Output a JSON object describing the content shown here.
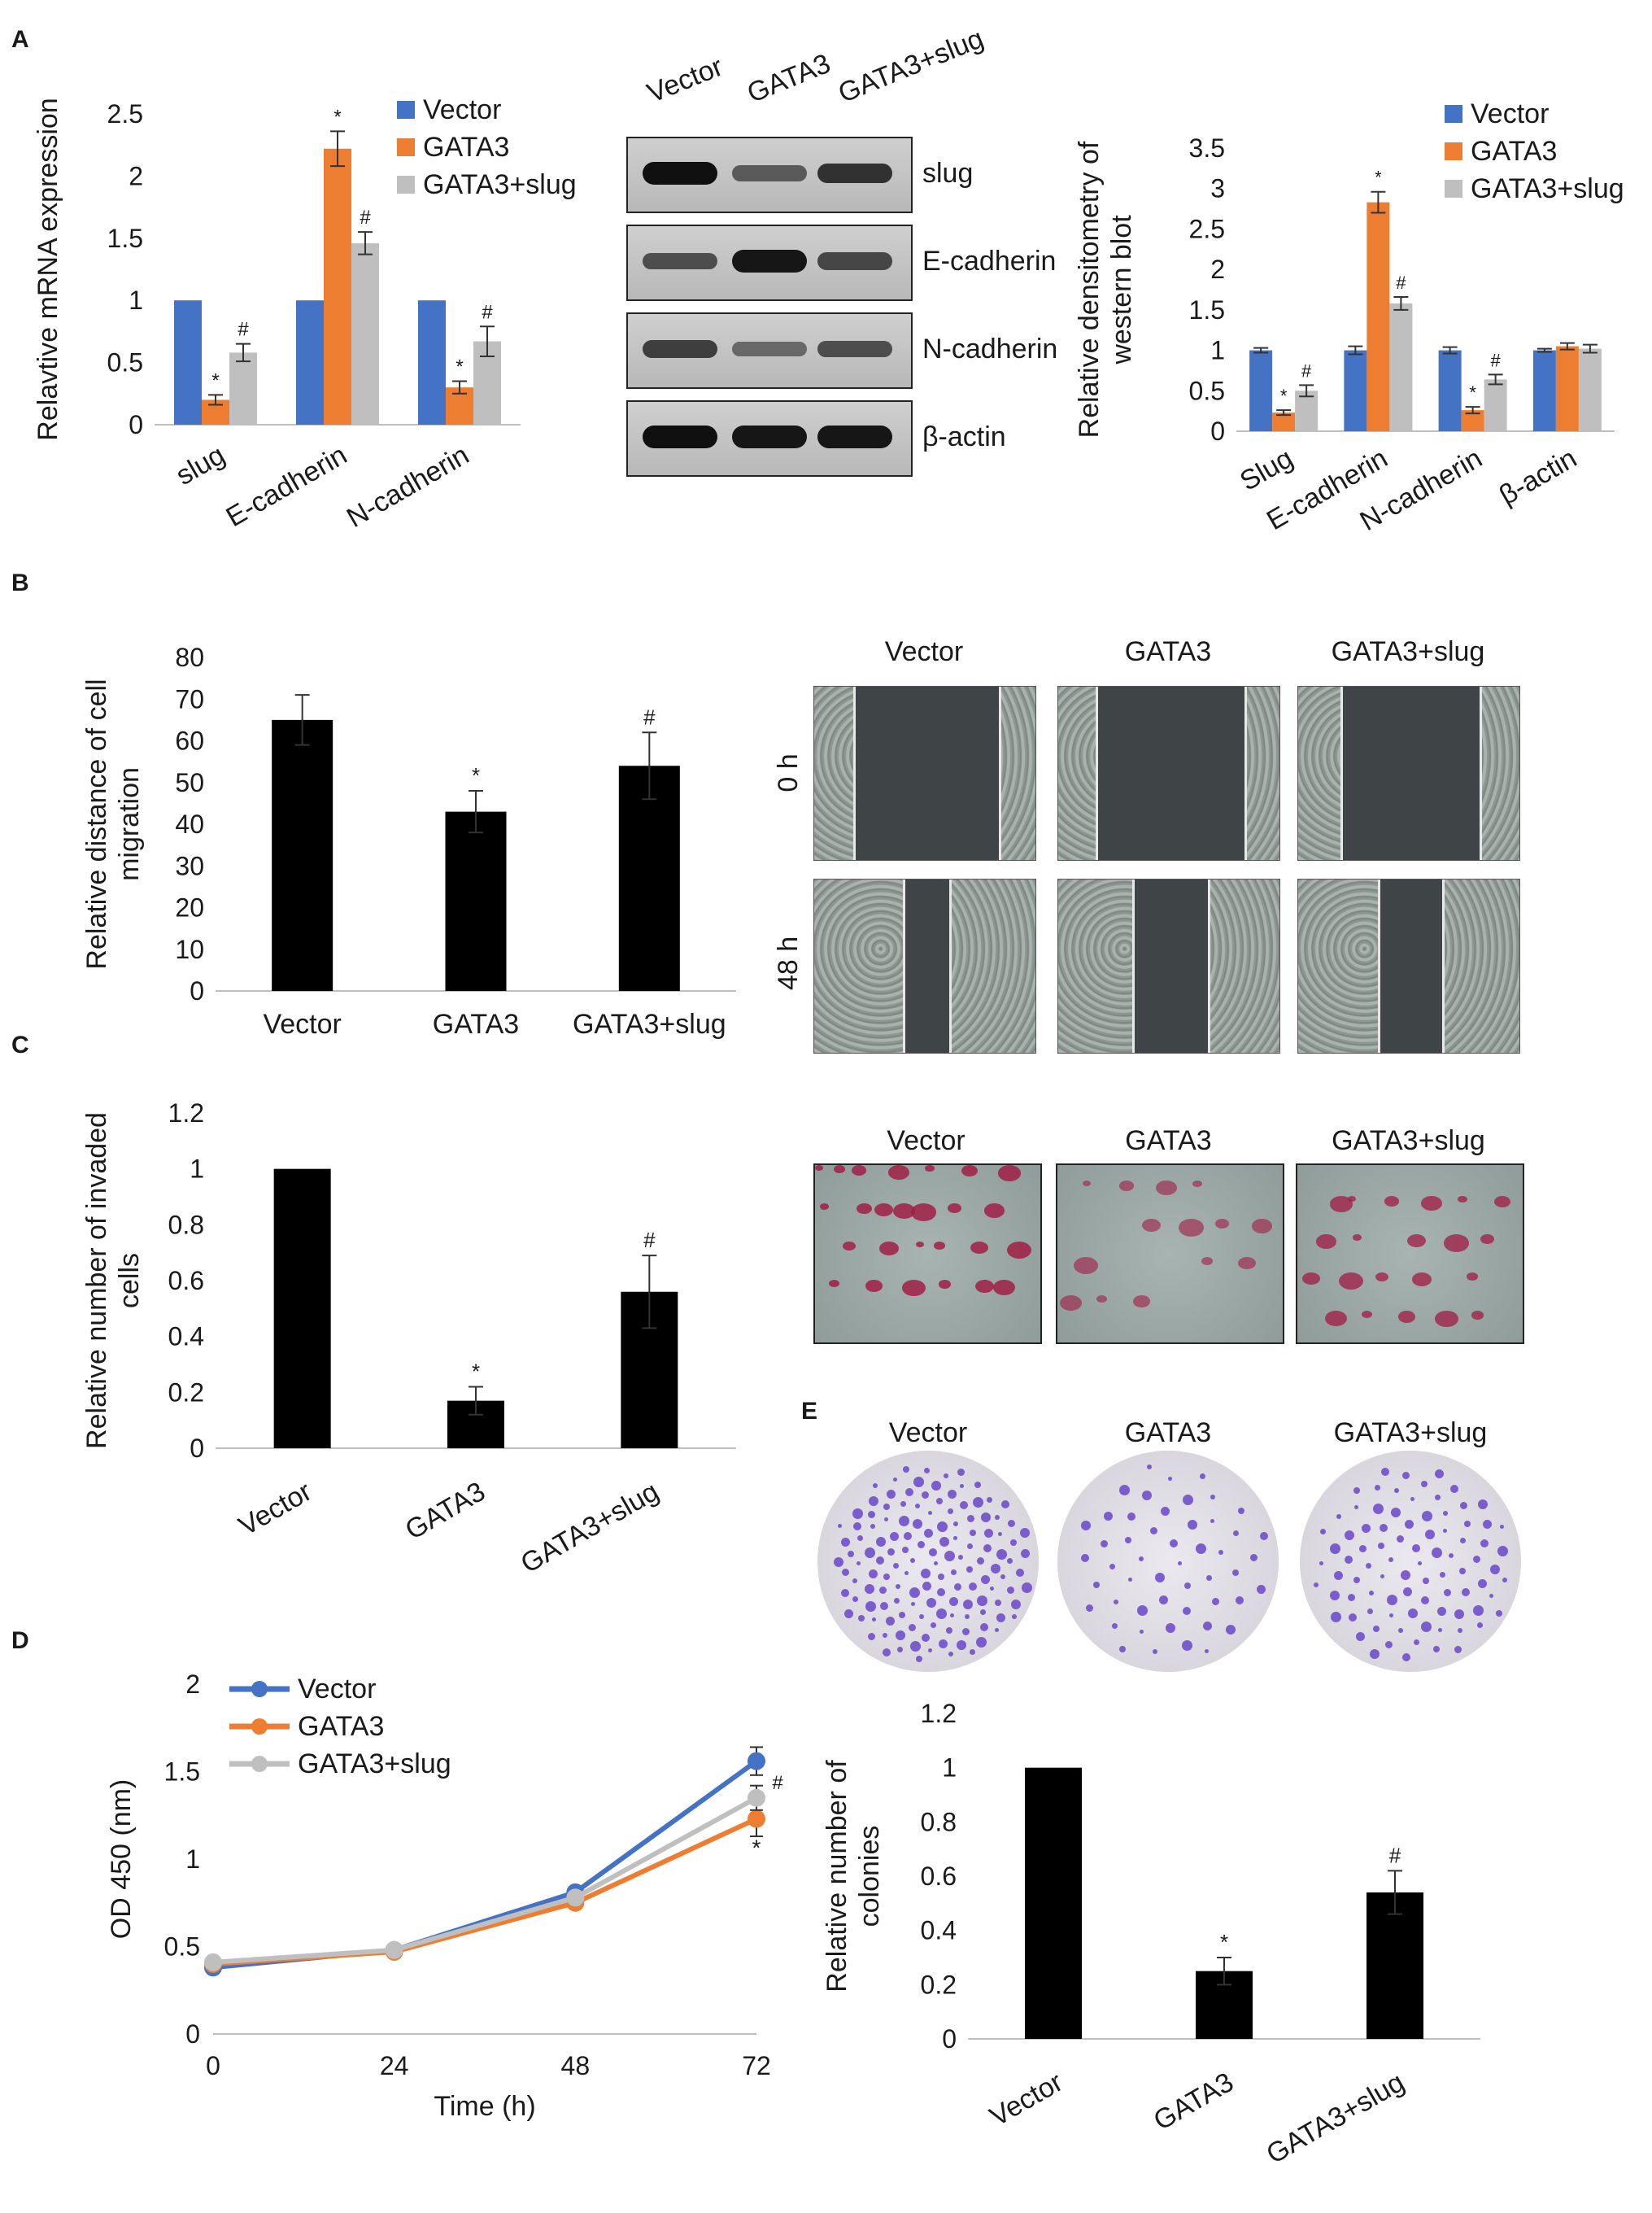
{
  "panel_labels": {
    "A": "A",
    "B": "B",
    "C": "C",
    "D": "D",
    "E": "E"
  },
  "colors": {
    "vector": "#4472c4",
    "gata3": "#ed7d31",
    "gata3_slug": "#bfbfbf",
    "bar": "#000000"
  },
  "panelA": {
    "blot": {
      "columns": [
        "Vector",
        "GATA3",
        "GATA3+slug"
      ],
      "rows": [
        {
          "label": "slug",
          "intensity": [
            1.0,
            0.45,
            0.75
          ]
        },
        {
          "label": "E-cadherin",
          "intensity": [
            0.55,
            0.95,
            0.6
          ]
        },
        {
          "label": "N-cadherin",
          "intensity": [
            0.65,
            0.35,
            0.55
          ]
        },
        {
          "label": "β-actin",
          "intensity": [
            1.0,
            0.95,
            0.95
          ]
        }
      ]
    }
  },
  "panelB": {
    "timepoints": [
      "0 h",
      "48 h"
    ],
    "columns": [
      "Vector",
      "GATA3",
      "GATA3+slug"
    ],
    "gap_fraction": [
      [
        0.65,
        0.66,
        0.62
      ],
      [
        0.2,
        0.33,
        0.28
      ]
    ]
  },
  "panelC": {
    "columns": [
      "Vector",
      "GATA3",
      "GATA3+slug"
    ],
    "stain_density": [
      0.9,
      0.35,
      0.7
    ]
  },
  "panelE": {
    "columns": [
      "Vector",
      "GATA3",
      "GATA3+slug"
    ],
    "colony_density": [
      1.0,
      0.25,
      0.55
    ]
  },
  "chart_data": [
    {
      "id": "A-left",
      "type": "bar",
      "categories": [
        "slug",
        "E-cadherin",
        "N-cadherin"
      ],
      "ylabel": "Relavtive mRNA expression",
      "xlabel": "",
      "title": "",
      "ylim": [
        0,
        2.5
      ],
      "yticks": [
        "0",
        "0.5",
        "1",
        "1.5",
        "2",
        "2.5"
      ],
      "grid": false,
      "legend": "top-right",
      "series": [
        {
          "name": "Vector",
          "color": "#4472c4",
          "values": [
            1.0,
            1.0,
            1.0
          ],
          "errors": [
            0,
            0,
            0
          ],
          "marks": [
            "",
            "",
            ""
          ]
        },
        {
          "name": "GATA3",
          "color": "#ed7d31",
          "values": [
            0.2,
            2.22,
            0.3
          ],
          "errors": [
            0.04,
            0.14,
            0.05
          ],
          "marks": [
            "*",
            "*",
            "*"
          ]
        },
        {
          "name": "GATA3+slug",
          "color": "#bfbfbf",
          "values": [
            0.58,
            1.46,
            0.67
          ],
          "errors": [
            0.07,
            0.09,
            0.12
          ],
          "marks": [
            "#",
            "#",
            "#"
          ]
        }
      ]
    },
    {
      "id": "A-right",
      "type": "bar",
      "categories": [
        "Slug",
        "E-cadherin",
        "N-cadherin",
        "β-actin"
      ],
      "ylabel": "Relative densitometry of western blot",
      "xlabel": "",
      "title": "",
      "ylim": [
        0,
        3.5
      ],
      "yticks": [
        "0",
        "0.5",
        "1",
        "1.5",
        "2",
        "2.5",
        "3",
        "3.5"
      ],
      "grid": false,
      "legend": "top-right",
      "series": [
        {
          "name": "Vector",
          "color": "#4472c4",
          "values": [
            1.0,
            1.0,
            1.0,
            1.0
          ],
          "errors": [
            0.03,
            0.05,
            0.04,
            0.02
          ],
          "marks": [
            "",
            "",
            "",
            ""
          ]
        },
        {
          "name": "GATA3",
          "color": "#ed7d31",
          "values": [
            0.23,
            2.83,
            0.26,
            1.05
          ],
          "errors": [
            0.03,
            0.13,
            0.04,
            0.04
          ],
          "marks": [
            "*",
            "*",
            "*",
            ""
          ]
        },
        {
          "name": "GATA3+slug",
          "color": "#bfbfbf",
          "values": [
            0.5,
            1.58,
            0.64,
            1.02
          ],
          "errors": [
            0.07,
            0.08,
            0.06,
            0.05
          ],
          "marks": [
            "#",
            "#",
            "#",
            ""
          ]
        }
      ]
    },
    {
      "id": "B",
      "type": "bar",
      "categories": [
        "Vector",
        "GATA3",
        "GATA3+slug"
      ],
      "ylabel": "Relative distance of cell migration",
      "xlabel": "",
      "title": "",
      "ylim": [
        0,
        80
      ],
      "yticks": [
        "0",
        "10",
        "20",
        "30",
        "40",
        "50",
        "60",
        "70",
        "80"
      ],
      "grid": false,
      "series": [
        {
          "color": "#000000",
          "values": [
            65,
            43,
            54
          ],
          "errors": [
            6,
            5,
            8
          ],
          "marks": [
            "",
            "*",
            "#"
          ]
        }
      ]
    },
    {
      "id": "C",
      "type": "bar",
      "categories": [
        "Vector",
        "GATA3",
        "GATA3+slug"
      ],
      "ylabel": "Relative number of invaded cells",
      "xlabel": "",
      "title": "",
      "ylim": [
        0,
        1.2
      ],
      "yticks": [
        "0",
        "0.2",
        "0.4",
        "0.6",
        "0.8",
        "1",
        "1.2"
      ],
      "grid": false,
      "series": [
        {
          "color": "#000000",
          "values": [
            1.0,
            0.17,
            0.56
          ],
          "errors": [
            0,
            0.05,
            0.13
          ],
          "marks": [
            "",
            "*",
            "#"
          ]
        }
      ]
    },
    {
      "id": "D",
      "type": "line",
      "x": [
        0,
        24,
        48,
        72
      ],
      "xticks": [
        "0",
        "24",
        "48",
        "72"
      ],
      "xlabel": "Time (h)",
      "ylabel": "OD 450 (nm)",
      "title": "",
      "xlim": [
        0,
        72
      ],
      "ylim": [
        0,
        2
      ],
      "yticks": [
        "0",
        "0.5",
        "1",
        "1.5",
        "2"
      ],
      "grid": false,
      "legend": "top-left",
      "series": [
        {
          "name": "Vector",
          "color": "#4472c4",
          "values": [
            0.38,
            0.48,
            0.81,
            1.56
          ],
          "errors": [
            0.02,
            0.03,
            0.03,
            0.08
          ]
        },
        {
          "name": "GATA3",
          "color": "#ed7d31",
          "values": [
            0.4,
            0.47,
            0.75,
            1.23
          ],
          "errors": [
            0.02,
            0.03,
            0.03,
            0.1
          ]
        },
        {
          "name": "GATA3+slug",
          "color": "#bfbfbf",
          "values": [
            0.41,
            0.48,
            0.78,
            1.35
          ],
          "errors": [
            0.02,
            0.03,
            0.03,
            0.07
          ]
        }
      ],
      "marks": [
        "#",
        "*"
      ]
    },
    {
      "id": "E",
      "type": "bar",
      "categories": [
        "Vector",
        "GATA3",
        "GATA3+slug"
      ],
      "ylabel": "Relative number of colonies",
      "xlabel": "",
      "title": "",
      "ylim": [
        0,
        1.2
      ],
      "yticks": [
        "0",
        "0.2",
        "0.4",
        "0.6",
        "0.8",
        "1",
        "1.2"
      ],
      "grid": false,
      "series": [
        {
          "color": "#000000",
          "values": [
            1.0,
            0.25,
            0.54
          ],
          "errors": [
            0,
            0.05,
            0.08
          ],
          "marks": [
            "",
            "*",
            "#"
          ]
        }
      ]
    }
  ]
}
